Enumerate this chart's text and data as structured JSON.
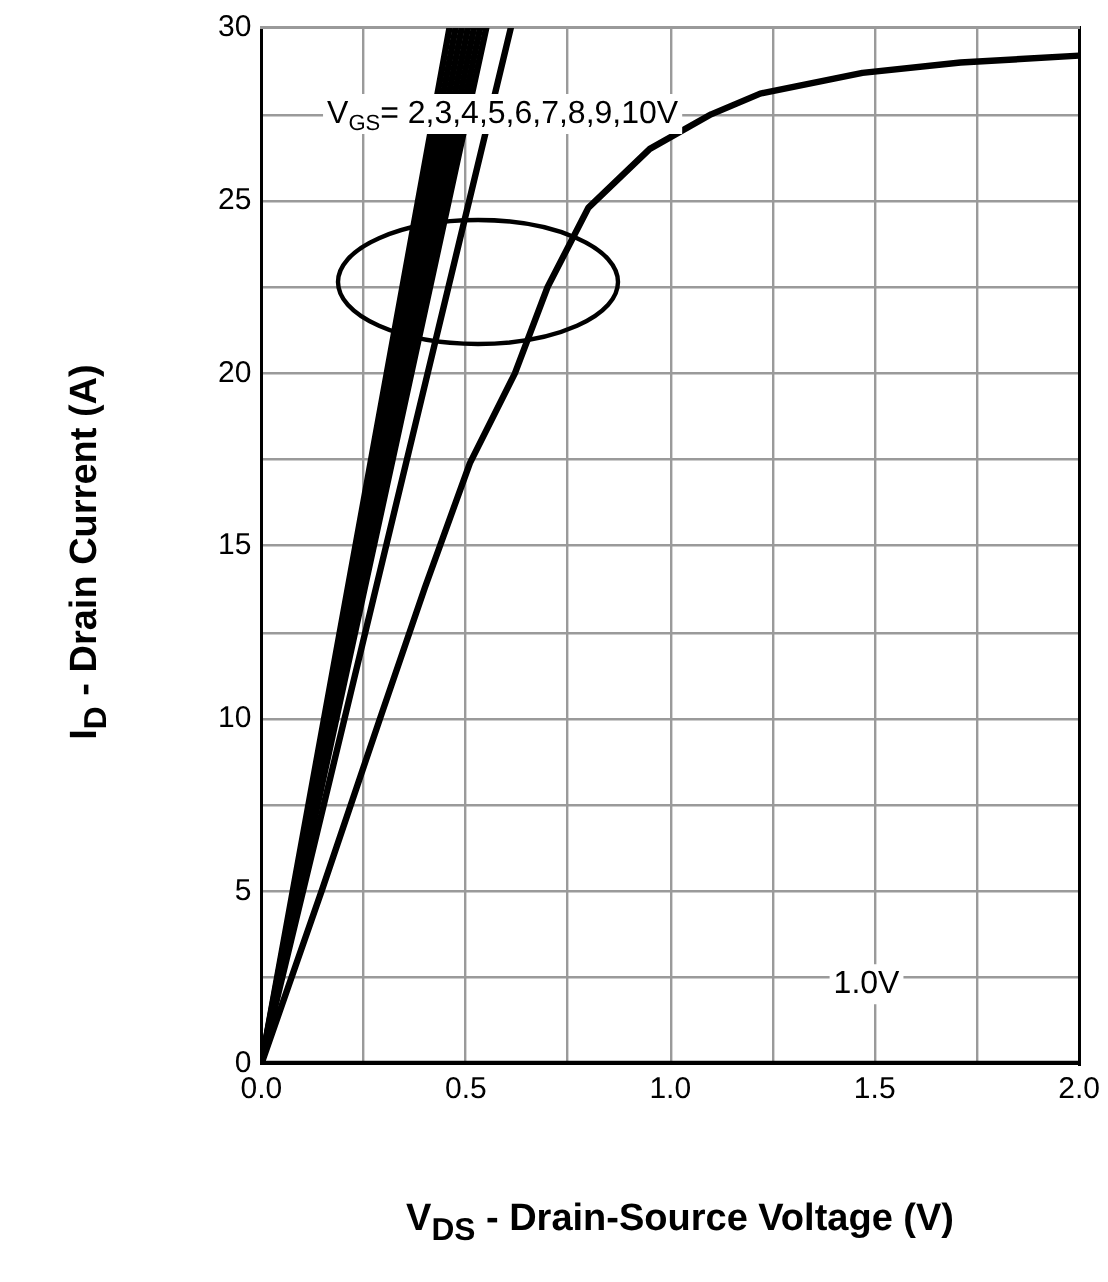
{
  "chart_data": {
    "type": "line",
    "xlabel": "V$_{DS}$ - Drain-Source Voltage (V)",
    "ylabel": "I$_{D}$ - Drain Current (A)",
    "xlim": [
      0,
      2
    ],
    "ylim": [
      0,
      30
    ],
    "xticks": [
      {
        "value": 0,
        "label": "0.0"
      },
      {
        "value": 0.25,
        "label": null
      },
      {
        "value": 0.5,
        "label": "0.5"
      },
      {
        "value": 0.75,
        "label": null
      },
      {
        "value": 1,
        "label": "1.0"
      },
      {
        "value": 1.25,
        "label": null
      },
      {
        "value": 1.5,
        "label": "1.5"
      },
      {
        "value": 1.75,
        "label": null
      },
      {
        "value": 2,
        "label": "2.0"
      }
    ],
    "yticks": [
      0,
      {
        "value": 2.5,
        "label": null
      },
      5,
      {
        "value": 7.5,
        "label": null
      },
      10,
      {
        "value": 12.5,
        "label": null
      },
      15,
      {
        "value": 17.5,
        "label": null
      },
      20,
      {
        "value": 22.5,
        "label": null
      },
      25,
      {
        "value": 27.5,
        "label": null
      },
      30
    ],
    "grid": true,
    "legend": false,
    "marker": "none",
    "line_style": "solid",
    "series": [
      {
        "color": "#000000",
        "x": [
          0,
          0.46
        ],
        "values": [
          0,
          30
        ]
      },
      {
        "color": "#000000",
        "x": [
          0,
          0.475
        ],
        "values": [
          0,
          30
        ]
      },
      {
        "color": "#000000",
        "x": [
          0,
          0.49
        ],
        "values": [
          0,
          30
        ]
      },
      {
        "color": "#000000",
        "x": [
          0,
          0.505
        ],
        "values": [
          0,
          30
        ]
      },
      {
        "color": "#000000",
        "x": [
          0,
          0.52
        ],
        "values": [
          0,
          30
        ]
      },
      {
        "color": "#000000",
        "x": [
          0,
          0.535
        ],
        "values": [
          0,
          30
        ]
      },
      {
        "color": "#000000",
        "x": [
          0,
          0.55
        ],
        "values": [
          0,
          30
        ]
      },
      {
        "color": "#000000",
        "x": [
          0,
          0.61
        ],
        "values": [
          0,
          30
        ]
      },
      {
        "color": "#000000",
        "x": [
          0,
          0.15,
          0.29,
          0.4,
          0.51,
          0.62,
          0.7,
          0.8,
          0.95,
          1.1,
          1.22,
          1.47,
          1.71,
          2.0
        ],
        "values": [
          0,
          5.1,
          10,
          13.8,
          17.4,
          20,
          22.5,
          24.8,
          26.5,
          27.5,
          28.1,
          28.7,
          29,
          29.2
        ]
      },
      {
        "color": "#000000",
        "x": [
          0,
          2
        ],
        "values": [
          0,
          0
        ]
      }
    ],
    "annotations": [
      "V$_{GS}$= 2,3,4,5,6,7,8,9,10V",
      "1.0V"
    ]
  }
}
